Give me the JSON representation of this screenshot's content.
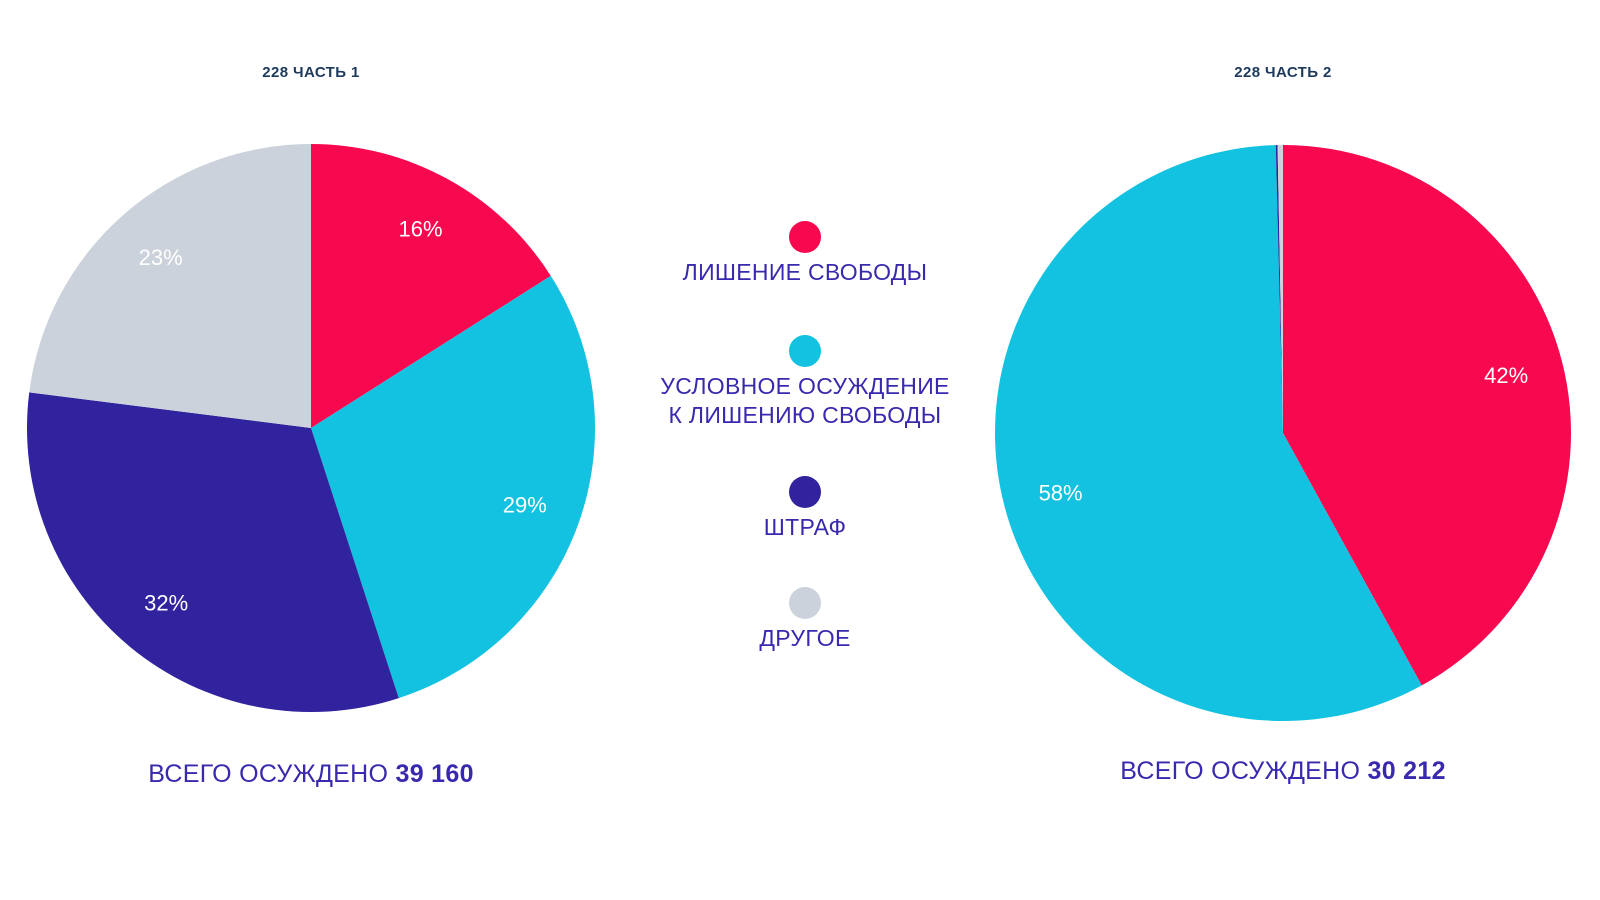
{
  "page": {
    "background": "#FFFFFF"
  },
  "palette": {
    "pink": "#F8084F",
    "cyan": "#12C2E0",
    "navy": "#31229D",
    "gray": "#CCD2DB",
    "title_text": "#1D3A5C",
    "body_text": "#3829AE",
    "slice_label_text": "#FFFFFF"
  },
  "legend": {
    "items": [
      {
        "label": "ЛИШЕНИЕ СВОБОДЫ",
        "color": "#F8084F"
      },
      {
        "label": "УСЛОВНОЕ ОСУЖДЕНИЕ\nК ЛИШЕНИЮ СВОБОДЫ",
        "color": "#12C2E0"
      },
      {
        "label": "ШТРАФ",
        "color": "#31229D"
      },
      {
        "label": "ДРУГОЕ",
        "color": "#CCD2DB"
      }
    ]
  },
  "chart_data": [
    {
      "type": "pie",
      "title": "228 ЧАСТЬ 1",
      "caption": {
        "prefix": "ВСЕГО ОСУЖДЕНО ",
        "total": "39 160"
      },
      "start_angle_deg": -90,
      "direction": "clockwise",
      "radius_px": 284,
      "label_radius_factor": 0.8,
      "slices": [
        {
          "name": "ЛИШЕНИЕ СВОБОДЫ",
          "value": 16,
          "label": "16%",
          "color": "#F8084F"
        },
        {
          "name": "УСЛОВНОЕ ОСУЖДЕНИЕ К ЛИШЕНИЮ СВОБОДЫ",
          "value": 29,
          "label": "29%",
          "color": "#12C2E0"
        },
        {
          "name": "ШТРАФ",
          "value": 32,
          "label": "32%",
          "color": "#31229D"
        },
        {
          "name": "ДРУГОЕ",
          "value": 23,
          "label": "23%",
          "color": "#CCD2DB"
        }
      ]
    },
    {
      "type": "pie",
      "title": "228 ЧАСТЬ 2",
      "caption": {
        "prefix": "ВСЕГО ОСУЖДЕНО ",
        "total": "30 212"
      },
      "start_angle_deg": -90,
      "direction": "clockwise",
      "radius_px": 288,
      "label_radius_factor": 0.8,
      "slices": [
        {
          "name": "ЛИШЕНИЕ СВОБОДЫ",
          "value": 42,
          "label": "42%",
          "color": "#F8084F"
        },
        {
          "name": "УСЛОВНОЕ ОСУЖДЕНИЕ К ЛИШЕНИЮ СВОБОДЫ",
          "value": 57.6,
          "label": "58%",
          "color": "#12C2E0"
        },
        {
          "name": "ШТРАФ",
          "value": 0.1,
          "label": null,
          "color": "#31229D"
        },
        {
          "name": "ДРУГОЕ",
          "value": 0.3,
          "label": null,
          "color": "#CCD2DB"
        }
      ]
    }
  ]
}
